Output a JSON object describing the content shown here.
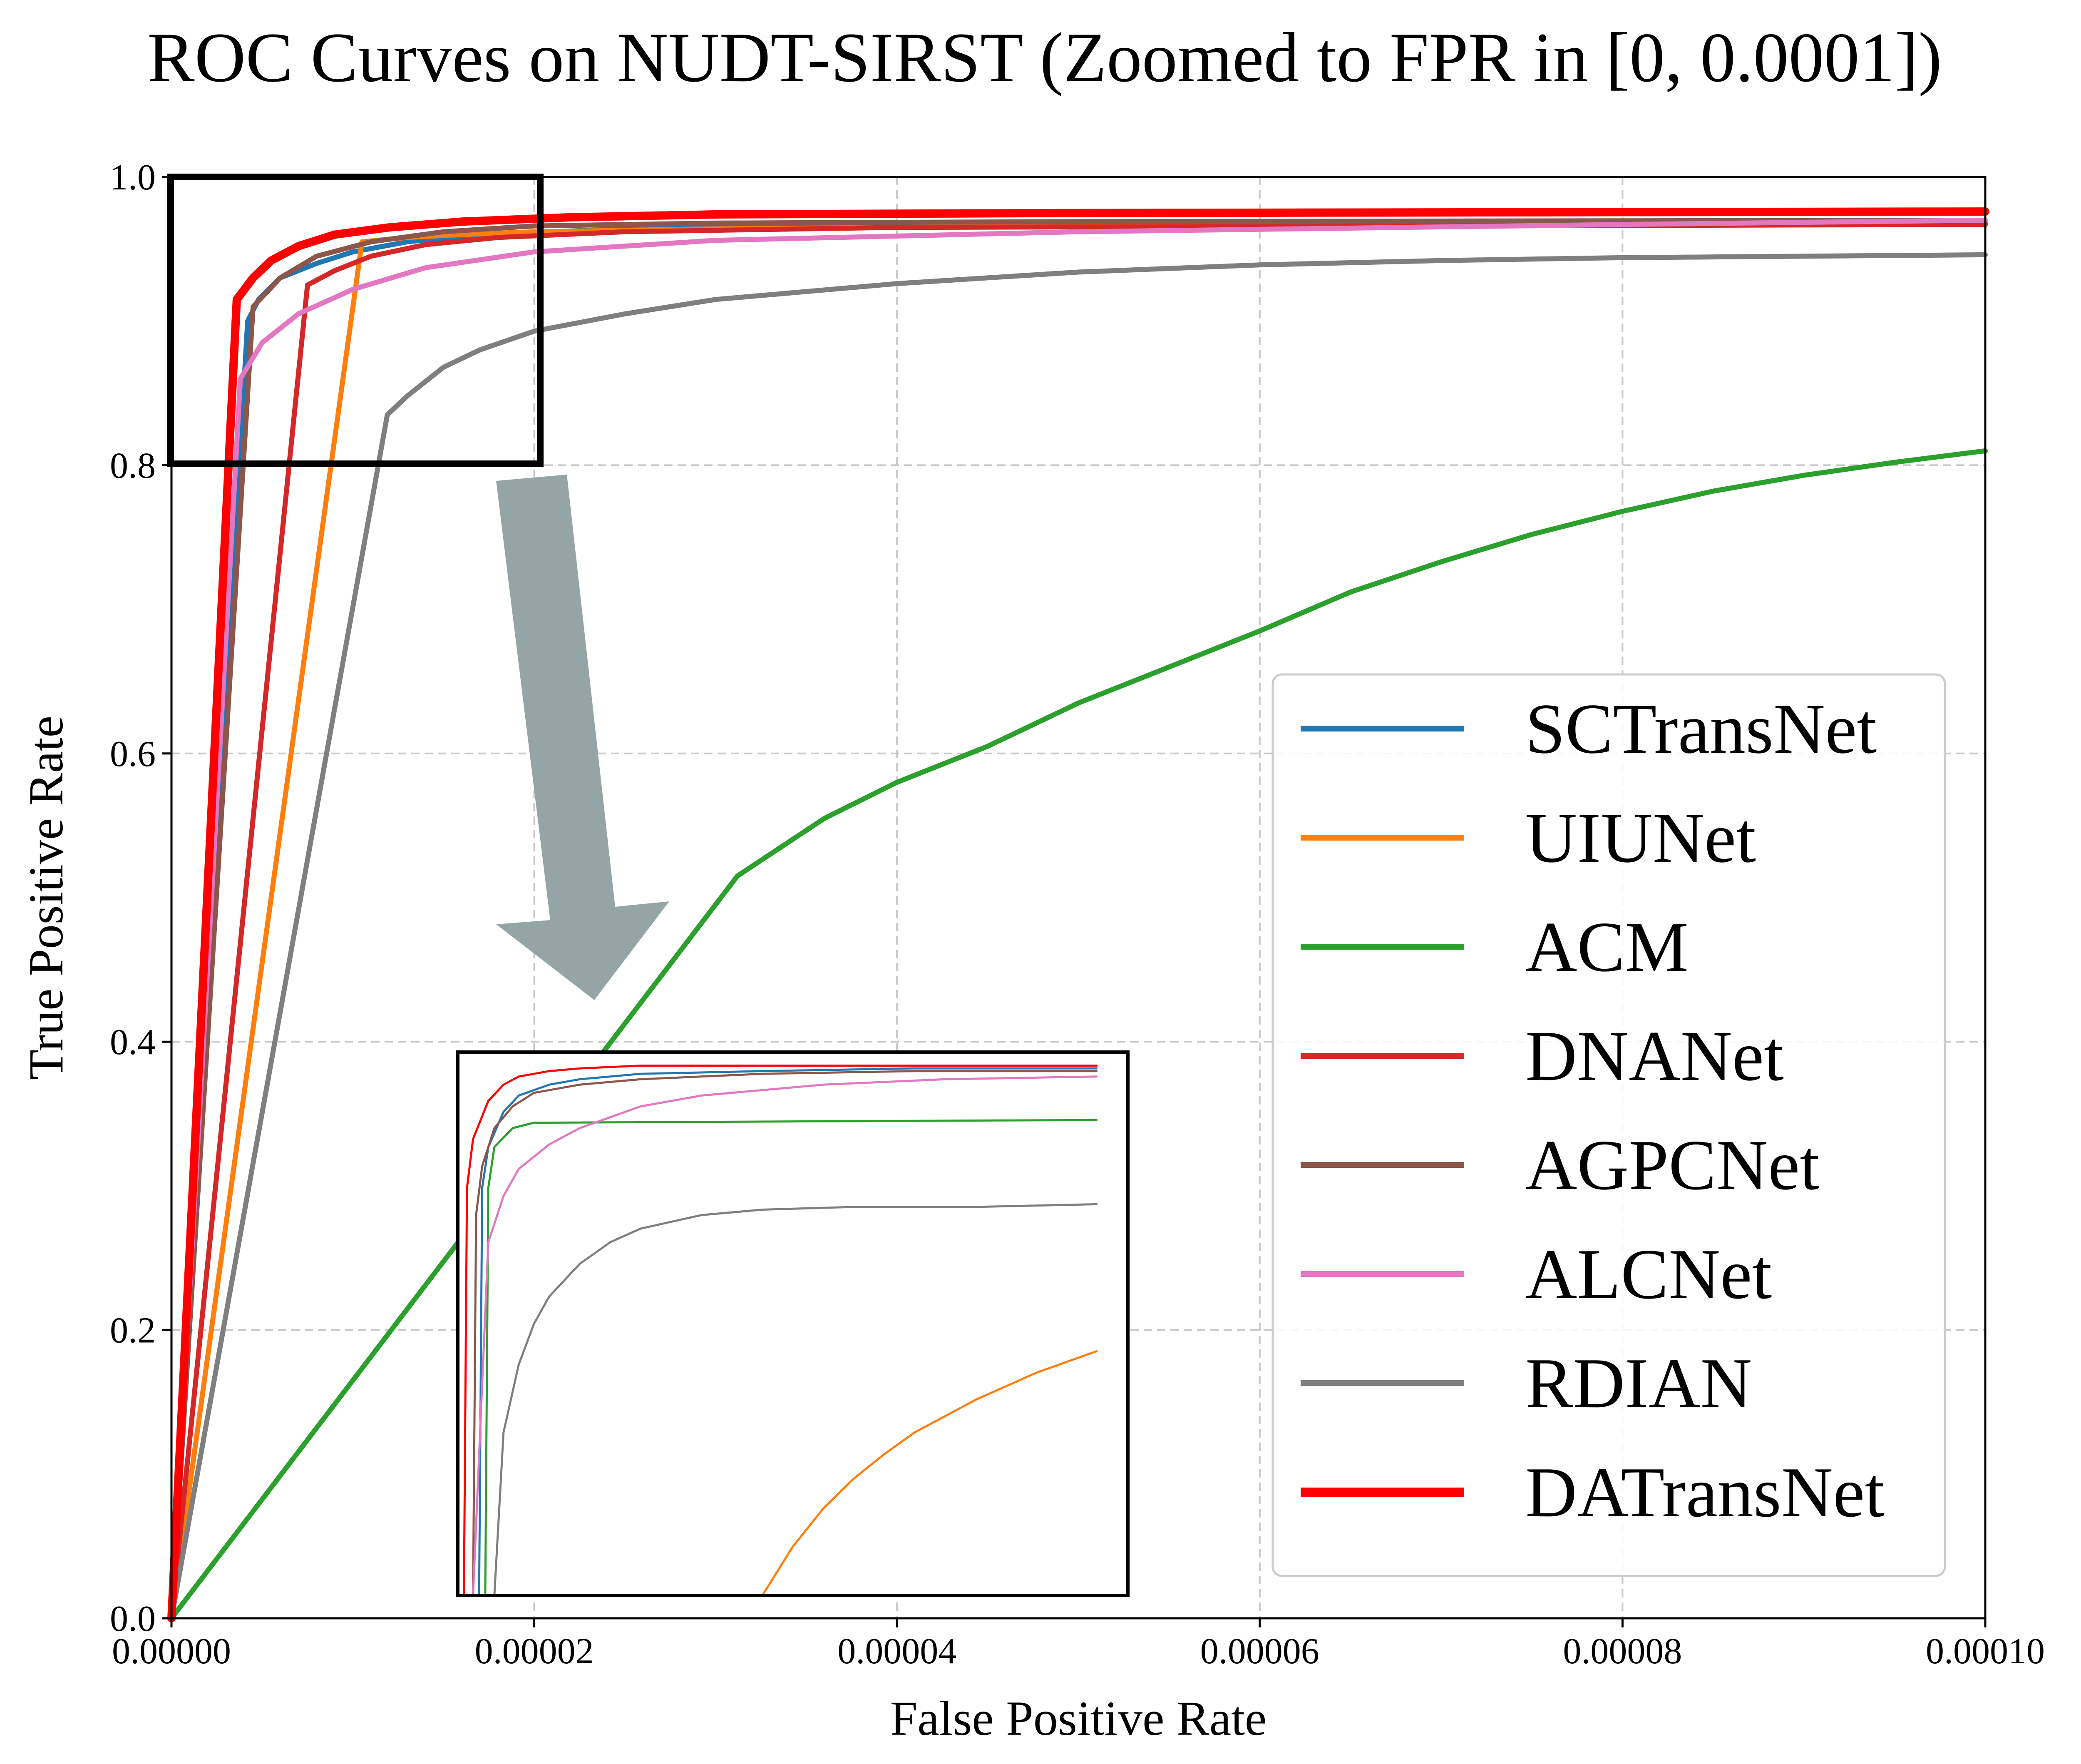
{
  "chart_data": {
    "type": "line",
    "title": "ROC Curves on NUDT-SIRST (Zoomed to FPR in [0, 0.0001])",
    "xlabel": "False Positive Rate",
    "ylabel": "True Positive Rate",
    "xlim": [
      0,
      0.0001
    ],
    "ylim": [
      0,
      1.0
    ],
    "grid": true,
    "legend_position": "center-right",
    "xticks": [
      {
        "value": 0,
        "label": "0.00000"
      },
      {
        "value": 2e-05,
        "label": "0.00002"
      },
      {
        "value": 4e-05,
        "label": "0.00004"
      },
      {
        "value": 6e-05,
        "label": "0.00006"
      },
      {
        "value": 8e-05,
        "label": "0.00008"
      },
      {
        "value": 0.0001,
        "label": "0.00010"
      }
    ],
    "yticks": [
      {
        "value": 0,
        "label": "0.0"
      },
      {
        "value": 0.2,
        "label": "0.2"
      },
      {
        "value": 0.4,
        "label": "0.4"
      },
      {
        "value": 0.6,
        "label": "0.6"
      },
      {
        "value": 0.8,
        "label": "0.8"
      },
      {
        "value": 1.0,
        "label": "1.0"
      }
    ],
    "series": [
      {
        "name": "SCTransNet",
        "color": "#1f77b4",
        "width": 12,
        "x": [
          0,
          4.2e-06,
          4.8e-06,
          6e-06,
          8e-06,
          1e-05,
          1.3e-05,
          1.7e-05,
          2.5e-05,
          4e-05,
          6e-05,
          0.0001
        ],
        "y": [
          0,
          0.9,
          0.915,
          0.93,
          0.94,
          0.948,
          0.955,
          0.96,
          0.964,
          0.966,
          0.967,
          0.968
        ]
      },
      {
        "name": "UIUNet",
        "color": "#ff7f0e",
        "width": 12,
        "x": [
          0,
          1.05e-05,
          1.3e-05,
          1.6e-05,
          2e-05,
          3e-05,
          5e-05,
          0.0001
        ],
        "y": [
          0,
          0.955,
          0.958,
          0.96,
          0.962,
          0.964,
          0.966,
          0.967
        ]
      },
      {
        "name": "ACM",
        "color": "#2ca02c",
        "width": 12,
        "x": [
          0,
          3.12e-05,
          3.3e-05,
          3.6e-05,
          4e-05,
          4.5e-05,
          5e-05,
          5.5e-05,
          6e-05,
          6.5e-05,
          7e-05,
          7.5e-05,
          8e-05,
          8.5e-05,
          9e-05,
          9.5e-05,
          0.0001
        ],
        "y": [
          0,
          0.515,
          0.53,
          0.555,
          0.58,
          0.605,
          0.635,
          0.66,
          0.685,
          0.712,
          0.733,
          0.752,
          0.768,
          0.782,
          0.793,
          0.802,
          0.81
        ]
      },
      {
        "name": "DNANet",
        "color": "#d62728",
        "width": 12,
        "x": [
          0,
          7.5e-06,
          9e-06,
          1.1e-05,
          1.4e-05,
          1.8e-05,
          2.5e-05,
          4e-05,
          0.0001
        ],
        "y": [
          0,
          0.925,
          0.935,
          0.945,
          0.953,
          0.958,
          0.962,
          0.965,
          0.967
        ]
      },
      {
        "name": "AGPCNet",
        "color": "#8c564b",
        "width": 12,
        "x": [
          0,
          4.5e-06,
          6e-06,
          8e-06,
          1.1e-05,
          1.5e-05,
          2e-05,
          3e-05,
          5e-05,
          0.0001
        ],
        "y": [
          0,
          0.91,
          0.93,
          0.945,
          0.955,
          0.962,
          0.966,
          0.968,
          0.969,
          0.97
        ]
      },
      {
        "name": "ALCNet",
        "color": "#e377c2",
        "width": 12,
        "x": [
          0,
          3.8e-06,
          5e-06,
          7e-06,
          1e-05,
          1.4e-05,
          2e-05,
          3e-05,
          5e-05,
          8e-05,
          0.0001
        ],
        "y": [
          0,
          0.86,
          0.885,
          0.905,
          0.922,
          0.937,
          0.948,
          0.956,
          0.962,
          0.967,
          0.97
        ]
      },
      {
        "name": "RDIAN",
        "color": "#7f7f7f",
        "width": 12,
        "x": [
          0,
          1.19e-05,
          1.3e-05,
          1.5e-05,
          1.7e-05,
          2e-05,
          2.5e-05,
          3e-05,
          4e-05,
          5e-05,
          6e-05,
          7e-05,
          8e-05,
          9e-05,
          0.0001
        ],
        "y": [
          0,
          0.835,
          0.848,
          0.868,
          0.88,
          0.893,
          0.905,
          0.915,
          0.926,
          0.934,
          0.939,
          0.942,
          0.944,
          0.945,
          0.946
        ]
      },
      {
        "name": "DATransNet",
        "color": "#ff0000",
        "width": 20,
        "x": [
          0,
          3.6e-06,
          4.5e-06,
          5.5e-06,
          7e-06,
          9e-06,
          1.2e-05,
          1.6e-05,
          2.2e-05,
          3e-05,
          5e-05,
          0.0001
        ],
        "y": [
          0,
          0.915,
          0.93,
          0.942,
          0.952,
          0.96,
          0.965,
          0.969,
          0.972,
          0.974,
          0.975,
          0.976
        ]
      }
    ],
    "zoom_region": {
      "x": [
        0,
        2e-05
      ],
      "y": [
        0.8,
        1.0
      ]
    },
    "inset": {
      "note": "magnified view of the boxed region",
      "xlim": [
        0,
        2.2e-05
      ],
      "ylim": [
        0.8,
        1.0
      ],
      "series": [
        {
          "name": "DATransNet",
          "color": "#ff0000",
          "width": 5,
          "x": [
            2e-07,
            3e-07,
            5e-07,
            1e-06,
            1.5e-06,
            2e-06,
            3e-06,
            4e-06,
            6e-06,
            1e-05,
            1.5e-05,
            2.1e-05
          ],
          "y": [
            0.8,
            0.95,
            0.968,
            0.982,
            0.988,
            0.991,
            0.993,
            0.994,
            0.995,
            0.995,
            0.995,
            0.995
          ]
        },
        {
          "name": "SCTransNet",
          "color": "#1f77b4",
          "width": 5,
          "x": [
            7e-07,
            8e-07,
            1e-06,
            1.5e-06,
            2e-06,
            3e-06,
            4e-06,
            6e-06,
            1e-05,
            1.5e-05,
            2.1e-05
          ],
          "y": [
            0.8,
            0.95,
            0.965,
            0.978,
            0.984,
            0.988,
            0.99,
            0.992,
            0.993,
            0.994,
            0.994
          ]
        },
        {
          "name": "AGPCNet",
          "color": "#8c564b",
          "width": 5,
          "x": [
            5e-07,
            6e-07,
            8e-07,
            1.2e-06,
            1.8e-06,
            2.5e-06,
            4e-06,
            6e-06,
            1e-05,
            1.5e-05,
            2.1e-05
          ],
          "y": [
            0.8,
            0.94,
            0.958,
            0.972,
            0.98,
            0.985,
            0.988,
            0.99,
            0.992,
            0.993,
            0.993
          ]
        },
        {
          "name": "ACM",
          "color": "#2ca02c",
          "width": 5,
          "x": [
            9e-07,
            1e-06,
            1.2e-06,
            1.8e-06,
            2.5e-06,
            2.1e-05
          ],
          "y": [
            0.8,
            0.95,
            0.965,
            0.972,
            0.974,
            0.975
          ]
        },
        {
          "name": "ALCNet",
          "color": "#e377c2",
          "width": 5,
          "x": [
            5e-07,
            1e-06,
            1.5e-06,
            2e-06,
            3e-06,
            4e-06,
            6e-06,
            8e-06,
            1.2e-05,
            1.6e-05,
            2.1e-05
          ],
          "y": [
            0.8,
            0.93,
            0.947,
            0.957,
            0.966,
            0.972,
            0.98,
            0.984,
            0.988,
            0.99,
            0.991
          ]
        },
        {
          "name": "RDIAN",
          "color": "#7f7f7f",
          "width": 5,
          "x": [
            1.2e-06,
            1.5e-06,
            2e-06,
            2.5e-06,
            3e-06,
            4e-06,
            5e-06,
            6e-06,
            8e-06,
            1e-05,
            1.3e-05,
            1.7e-05,
            2.1e-05
          ],
          "y": [
            0.8,
            0.86,
            0.885,
            0.9,
            0.91,
            0.922,
            0.93,
            0.935,
            0.94,
            0.942,
            0.943,
            0.943,
            0.944
          ]
        },
        {
          "name": "UIUNet",
          "color": "#ff7f0e",
          "width": 5,
          "x": [
            1e-05,
            1.1e-05,
            1.2e-05,
            1.3e-05,
            1.4e-05,
            1.5e-05,
            1.6e-05,
            1.7e-05,
            1.8e-05,
            1.9e-05,
            2e-05,
            2.1e-05
          ],
          "y": [
            0.8,
            0.818,
            0.832,
            0.843,
            0.852,
            0.86,
            0.866,
            0.872,
            0.877,
            0.882,
            0.886,
            0.89
          ]
        }
      ]
    }
  }
}
